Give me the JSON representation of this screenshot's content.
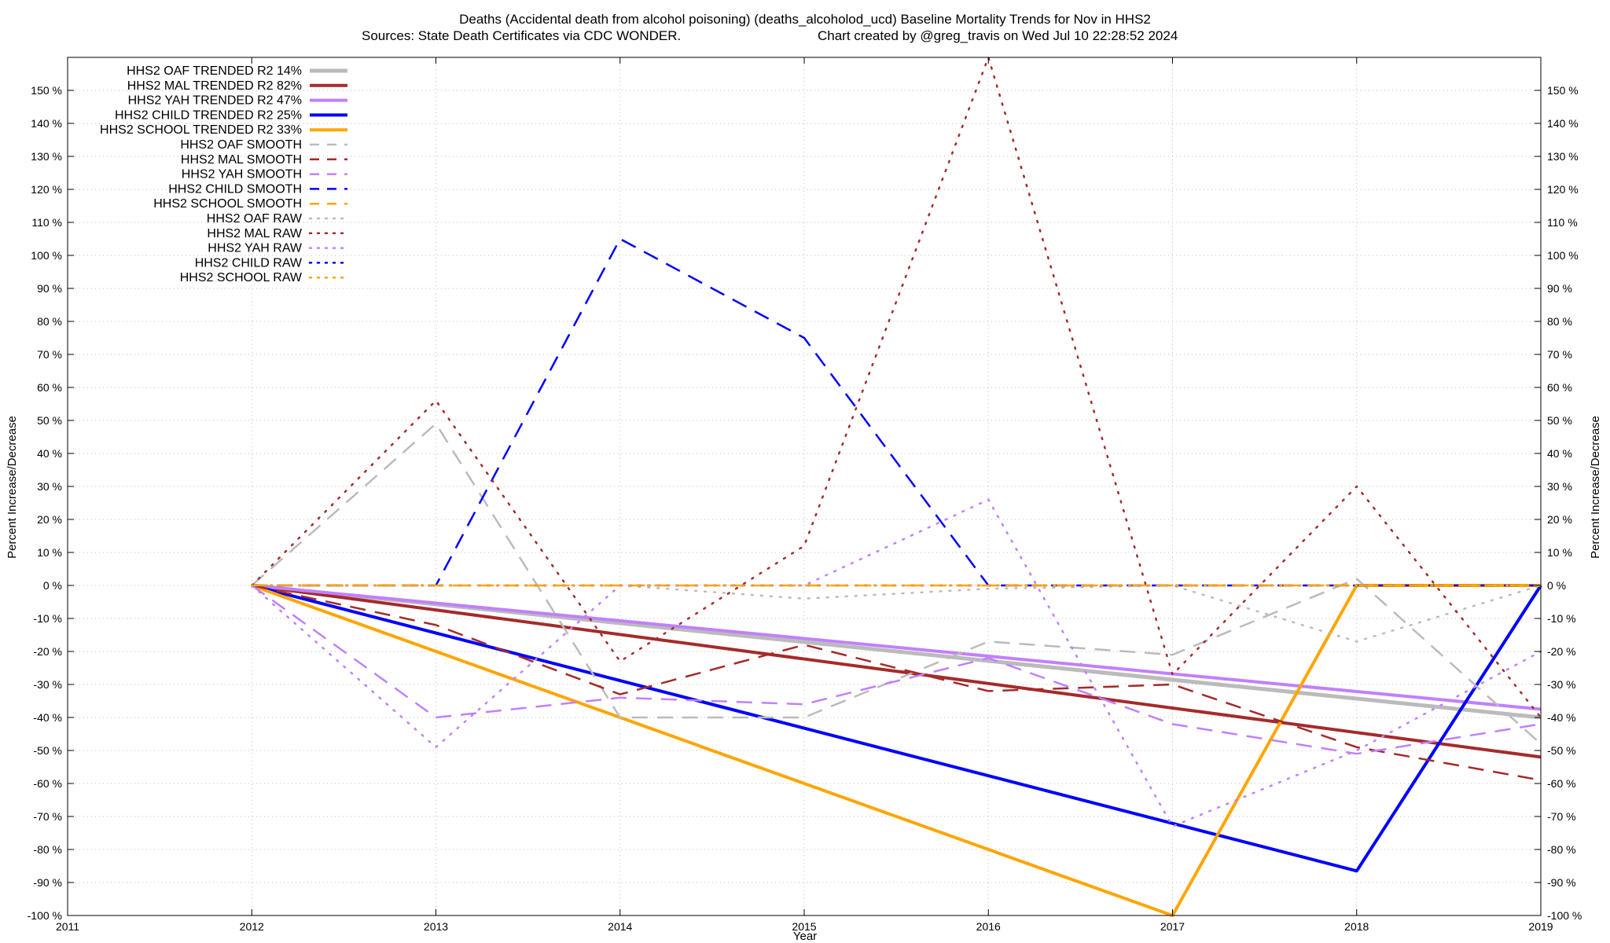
{
  "chart_data": {
    "type": "line",
    "title_line1": "Deaths (Accidental death from alcohol poisoning) (deaths_alcoholod_ucd)  Baseline Mortality Trends for Nov in HHS2",
    "title_line2_left": "Sources: State Death Certificates via CDC WONDER.",
    "title_line2_right": "Chart created by @greg_travis on Wed Jul 10 22:28:52 2024",
    "xlabel": "Year",
    "ylabel": "Percent Increase/Decrease",
    "xlim": [
      2011,
      2019
    ],
    "ylim": [
      -100,
      160
    ],
    "x_ticks": [
      2011,
      2012,
      2013,
      2014,
      2015,
      2016,
      2017,
      2018,
      2019
    ],
    "y_ticks": [
      -100,
      -90,
      -80,
      -70,
      -60,
      -50,
      -40,
      -30,
      -20,
      -10,
      0,
      10,
      20,
      30,
      40,
      50,
      60,
      70,
      80,
      90,
      100,
      110,
      120,
      130,
      140,
      150
    ],
    "y_tick_suffix": " %",
    "grid": true,
    "legend_position": "top-left",
    "series": [
      {
        "name": "HHS2 OAF TRENDED R2  14%",
        "color": "#bbbbbb",
        "style": "solid",
        "width": 5,
        "x": [
          2012,
          2019
        ],
        "y": [
          0,
          -40
        ]
      },
      {
        "name": "HHS2 MAL TRENDED R2  82%",
        "color": "#a52a2a",
        "style": "solid",
        "width": 4,
        "x": [
          2012,
          2019
        ],
        "y": [
          0,
          -52
        ]
      },
      {
        "name": "HHS2 YAH TRENDED R2  47%",
        "color": "#c080ff",
        "style": "solid",
        "width": 4,
        "x": [
          2012,
          2019
        ],
        "y": [
          0,
          -37.5
        ]
      },
      {
        "name": "HHS2 CHILD TRENDED R2  25%",
        "color": "#0000ff",
        "style": "solid",
        "width": 4,
        "x": [
          2012,
          2018,
          2019
        ],
        "y": [
          0,
          -86.5,
          0
        ]
      },
      {
        "name": "HHS2 SCHOOL TRENDED R2  33%",
        "color": "#ffa500",
        "style": "solid",
        "width": 4,
        "x": [
          2012,
          2017,
          2018,
          2019
        ],
        "y": [
          0,
          -100,
          0,
          0
        ]
      },
      {
        "name": "HHS2 OAF SMOOTH",
        "color": "#bbbbbb",
        "style": "dashed",
        "width": 2.5,
        "x": [
          2012,
          2013,
          2014,
          2015,
          2016,
          2017,
          2018,
          2019
        ],
        "y": [
          0,
          49,
          -40,
          -40,
          -17,
          -21,
          2,
          -48
        ]
      },
      {
        "name": "HHS2 MAL SMOOTH",
        "color": "#a52a2a",
        "style": "dashed",
        "width": 2.5,
        "x": [
          2012,
          2013,
          2014,
          2015,
          2016,
          2017,
          2018,
          2019
        ],
        "y": [
          0,
          -12,
          -33,
          -18,
          -32,
          -30,
          -49,
          -59
        ]
      },
      {
        "name": "HHS2 YAH SMOOTH",
        "color": "#c080ff",
        "style": "dashed",
        "width": 2.5,
        "x": [
          2012,
          2013,
          2014,
          2015,
          2016,
          2017,
          2018,
          2019
        ],
        "y": [
          0,
          -40,
          -34,
          -36,
          -22,
          -42,
          -51,
          -42
        ]
      },
      {
        "name": "HHS2 CHILD SMOOTH",
        "color": "#0000ff",
        "style": "dashed",
        "width": 2.5,
        "x": [
          2012,
          2013,
          2014,
          2015,
          2016,
          2017,
          2018,
          2019
        ],
        "y": [
          0,
          0,
          105,
          75,
          0,
          0,
          0,
          0
        ]
      },
      {
        "name": "HHS2 SCHOOL SMOOTH",
        "color": "#ffa500",
        "style": "dashed",
        "width": 2.5,
        "x": [
          2012,
          2013,
          2014,
          2015,
          2016,
          2017,
          2018,
          2019
        ],
        "y": [
          0,
          0,
          0,
          0,
          0,
          0,
          0,
          0
        ]
      },
      {
        "name": "HHS2 OAF RAW",
        "color": "#bbbbbb",
        "style": "dotted",
        "width": 2.5,
        "x": [
          2012,
          2013,
          2014,
          2015,
          2016,
          2017,
          2018,
          2019
        ],
        "y": [
          0,
          0,
          0,
          -4,
          -1,
          0,
          -17,
          0
        ]
      },
      {
        "name": "HHS2 MAL RAW",
        "color": "#a52a2a",
        "style": "dotted",
        "width": 2.5,
        "x": [
          2012,
          2013,
          2014,
          2015,
          2016,
          2017,
          2018,
          2019
        ],
        "y": [
          0,
          56,
          -23,
          12,
          160,
          -27,
          30,
          -40
        ]
      },
      {
        "name": "HHS2 YAH RAW",
        "color": "#c080ff",
        "style": "dotted",
        "width": 2.5,
        "x": [
          2012,
          2013,
          2014,
          2015,
          2016,
          2017,
          2018,
          2019
        ],
        "y": [
          0,
          -49,
          0,
          0,
          26,
          -73,
          -50,
          -20
        ]
      },
      {
        "name": "HHS2 CHILD RAW",
        "color": "#0000ff",
        "style": "dotted",
        "width": 2.5,
        "x": [
          2012,
          2013,
          2014,
          2015,
          2016,
          2017,
          2018,
          2019
        ],
        "y": [
          0,
          0,
          0,
          0,
          0,
          0,
          0,
          0
        ]
      },
      {
        "name": "HHS2 SCHOOL RAW",
        "color": "#ffa500",
        "style": "dotted",
        "width": 2.5,
        "x": [
          2012,
          2013,
          2014,
          2015,
          2016,
          2017,
          2018,
          2019
        ],
        "y": [
          0,
          0,
          0,
          0,
          0,
          0,
          0,
          0
        ]
      }
    ]
  }
}
